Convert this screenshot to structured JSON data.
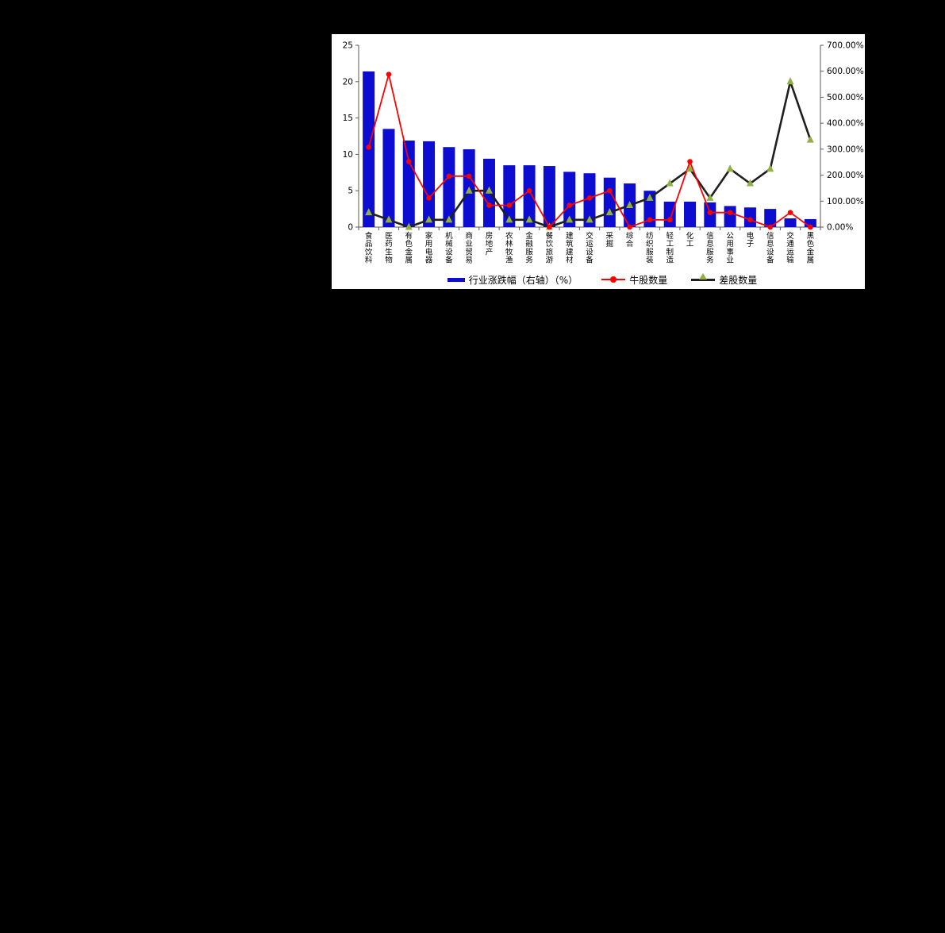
{
  "page": {
    "background": "#000000"
  },
  "chart": {
    "background": "#FFFFFF",
    "colors": {
      "bar": "#0D0DD2",
      "bull_line": "#FF0000",
      "bad_line": "#1F1F1F",
      "bad_marker": "#90AF45",
      "axis": "#595959",
      "text": "#000000"
    },
    "legend": [
      {
        "label": "行业涨跌幅（右轴）（%）",
        "swatch": "bar"
      },
      {
        "label": "牛股数量",
        "swatch": "line-dot"
      },
      {
        "label": "差股数量",
        "swatch": "line-triangle"
      }
    ]
  },
  "chart_data": {
    "type": "bar",
    "subtype": "combo bar + two line series with markers",
    "title": "",
    "xlabel": "",
    "ylabel": "",
    "grid": false,
    "legend_position": "bottom",
    "categories": [
      "食品饮料",
      "医药生物",
      "有色金属",
      "家用电器",
      "机械设备",
      "商业贸易",
      "房地产",
      "农林牧渔",
      "金融服务",
      "餐饮旅游",
      "建筑建材",
      "交运设备",
      "采掘",
      "综合",
      "纺织服装",
      "轻工制造",
      "化工",
      "信息服务",
      "公用事业",
      "电子",
      "信息设备",
      "交通运输",
      "黑色金属"
    ],
    "left_axis": {
      "min": 0,
      "max": 25,
      "ticks": [
        "0",
        "5",
        "10",
        "15",
        "20",
        "25"
      ]
    },
    "right_axis": {
      "min": "0.00%",
      "max": "700.00%",
      "ticks": [
        "0.00%",
        "100.00%",
        "200.00%",
        "300.00%",
        "400.00%",
        "500.00%",
        "600.00%",
        "700.00%"
      ]
    },
    "series": [
      {
        "name": "行业涨跌幅（右轴）（%）",
        "type": "bar",
        "color": "#0D0DD2",
        "note": "bar tops read on left 0-25 scale; legend ties bars to right % axis (25 = 700%)",
        "values": [
          21.4,
          13.5,
          11.9,
          11.8,
          11.0,
          10.7,
          9.4,
          8.5,
          8.5,
          8.4,
          7.6,
          7.4,
          6.8,
          6.0,
          5.0,
          3.5,
          3.5,
          3.4,
          2.9,
          2.7,
          2.5,
          1.2,
          1.1
        ]
      },
      {
        "name": "牛股数量",
        "type": "line",
        "marker": "circle",
        "color": "#FF0000",
        "values": [
          11,
          21,
          9,
          4,
          7,
          7,
          3,
          3,
          5,
          0,
          3,
          4,
          5,
          0,
          1,
          1,
          9,
          2,
          2,
          1,
          0,
          2,
          0
        ]
      },
      {
        "name": "差股数量",
        "type": "line",
        "marker": "triangle",
        "color": "#1F1F1F",
        "marker_color": "#90AF45",
        "values": [
          2,
          1,
          0,
          1,
          1,
          5,
          5,
          1,
          1,
          0,
          1,
          1,
          2,
          3,
          4,
          6,
          8,
          4,
          8,
          6,
          8,
          20,
          12
        ]
      }
    ]
  }
}
